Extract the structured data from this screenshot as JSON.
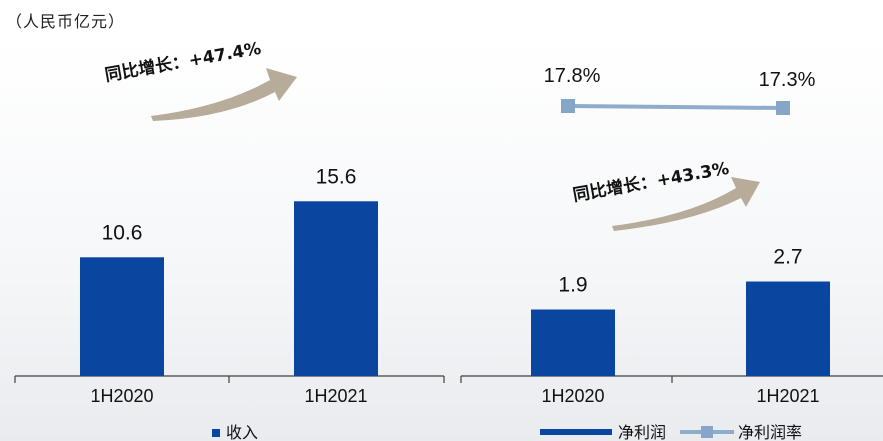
{
  "unit_label": "（人民币亿元）",
  "colors": {
    "bar": "#0a46a0",
    "line": "#8eaccb",
    "marker": "#86a6c8",
    "arrow": "#b7ab9a",
    "axis": "#404040",
    "text": "#111111"
  },
  "chart_data": [
    {
      "type": "bar",
      "categories": [
        "1H2020",
        "1H2021"
      ],
      "series": [
        {
          "name": "收入",
          "values": [
            10.6,
            15.6
          ],
          "labels": [
            "10.6",
            "15.6"
          ]
        }
      ],
      "legend": "bottom-left",
      "annotations": [
        {
          "text": "同比增长：+47.4%"
        }
      ]
    },
    {
      "type": "bar",
      "categories": [
        "1H2020",
        "1H2021"
      ],
      "series": [
        {
          "name": "净利润",
          "values": [
            1.9,
            2.7
          ],
          "labels": [
            "1.9",
            "2.7"
          ]
        },
        {
          "name": "净利润率",
          "type": "line",
          "values": [
            17.8,
            17.3
          ],
          "labels": [
            "17.8%",
            "17.3%"
          ]
        }
      ],
      "legend": "bottom-right",
      "annotations": [
        {
          "text": "同比增长：+43.3%"
        }
      ]
    }
  ]
}
